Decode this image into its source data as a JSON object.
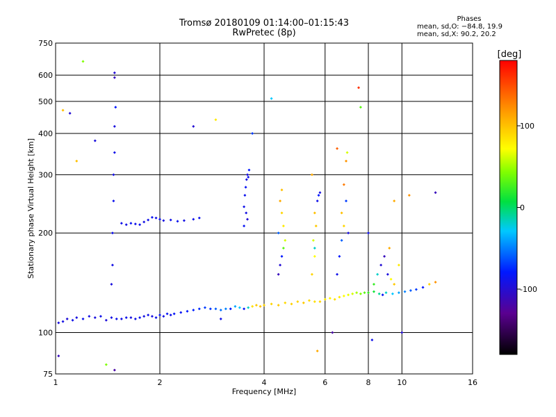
{
  "header": {
    "title_line1": "Tromsø 20180109 01:14:00–01:15:43",
    "title_line2": "RwPretec (8p)"
  },
  "phases": {
    "heading": "Phases",
    "line_o": "mean, sd,O: −84.8, 19.9",
    "line_x": "mean, sd,X:  90.2, 20.2"
  },
  "chart_data": {
    "type": "scatter",
    "title": "Tromsø 20180109 01:14:00–01:15:43",
    "subtitle": "RwPretec (8p)",
    "xlabel": "Frequency [MHz]",
    "ylabel": "Stationary phase Virtual Height [km]",
    "xscale": "log",
    "yscale": "log",
    "xlim": [
      1,
      16
    ],
    "ylim": [
      75,
      750
    ],
    "x_ticks": [
      1,
      2,
      4,
      6,
      8,
      10,
      16
    ],
    "y_ticks": [
      75,
      100,
      200,
      300,
      400,
      500,
      600,
      750
    ],
    "grid": true,
    "colorbar": {
      "label": "[deg]",
      "range": [
        -180,
        180
      ],
      "ticks": [
        100,
        0,
        -100
      ]
    },
    "series": [
      {
        "trace": "o-mode-lower",
        "points": [
          [
            1.02,
            107,
            -95
          ],
          [
            1.05,
            108,
            -92
          ],
          [
            1.08,
            110,
            -98
          ],
          [
            1.12,
            109,
            -90
          ],
          [
            1.15,
            111,
            -94
          ],
          [
            1.2,
            110,
            -88
          ],
          [
            1.25,
            112,
            -92
          ],
          [
            1.3,
            111,
            -95
          ],
          [
            1.35,
            112,
            -90
          ],
          [
            1.4,
            109,
            -97
          ],
          [
            1.45,
            111,
            -93
          ],
          [
            1.5,
            110,
            -89
          ],
          [
            1.55,
            110,
            -92
          ],
          [
            1.6,
            111,
            -88
          ],
          [
            1.65,
            111,
            -95
          ],
          [
            1.7,
            110,
            -91
          ],
          [
            1.75,
            111,
            -87
          ],
          [
            1.8,
            112,
            -93
          ],
          [
            1.85,
            113,
            -90
          ],
          [
            1.9,
            112,
            -94
          ],
          [
            1.95,
            111,
            -88
          ],
          [
            2.0,
            113,
            -86
          ],
          [
            2.05,
            112,
            -92
          ],
          [
            2.1,
            114,
            -85
          ],
          [
            2.15,
            113,
            -90
          ],
          [
            2.2,
            114,
            -83
          ],
          [
            2.3,
            115,
            -86
          ],
          [
            2.4,
            116,
            -80
          ],
          [
            2.5,
            117,
            -78
          ],
          [
            2.6,
            118,
            -75
          ],
          [
            2.7,
            119,
            -70
          ],
          [
            2.8,
            118,
            -72
          ],
          [
            2.9,
            118,
            -60
          ],
          [
            3.0,
            117,
            -55
          ],
          [
            3.1,
            118,
            -50
          ],
          [
            3.2,
            118,
            -80
          ],
          [
            3.3,
            120,
            -40
          ],
          [
            3.4,
            119,
            -30
          ],
          [
            3.5,
            118,
            -85
          ],
          [
            3.6,
            119,
            -20
          ]
        ]
      },
      {
        "trace": "x-mode-lower",
        "points": [
          [
            3.7,
            120,
            85
          ],
          [
            3.8,
            121,
            95
          ],
          [
            3.9,
            120,
            100
          ],
          [
            4.0,
            121,
            92
          ],
          [
            4.2,
            122,
            90
          ],
          [
            4.4,
            121,
            95
          ],
          [
            4.6,
            123,
            88
          ],
          [
            4.8,
            122,
            92
          ],
          [
            5.0,
            124,
            90
          ],
          [
            5.2,
            123,
            95
          ],
          [
            5.4,
            125,
            88
          ],
          [
            5.6,
            124,
            85
          ],
          [
            5.8,
            124,
            90
          ],
          [
            6.0,
            126,
            80
          ],
          [
            6.2,
            127,
            75
          ],
          [
            6.4,
            126,
            85
          ],
          [
            6.6,
            128,
            80
          ],
          [
            6.8,
            129,
            70
          ],
          [
            7.0,
            130,
            65
          ],
          [
            7.2,
            131,
            60
          ],
          [
            7.4,
            132,
            50
          ],
          [
            7.6,
            131,
            40
          ],
          [
            7.8,
            132,
            30
          ],
          [
            8.0,
            132,
            20
          ],
          [
            8.3,
            133,
            10
          ],
          [
            8.6,
            131,
            -10
          ],
          [
            9.0,
            132,
            -20
          ],
          [
            9.4,
            131,
            -30
          ],
          [
            9.8,
            132,
            -40
          ],
          [
            10.2,
            133,
            -50
          ],
          [
            10.6,
            134,
            -60
          ],
          [
            11.0,
            135,
            -70
          ],
          [
            11.5,
            137,
            -80
          ],
          [
            12.0,
            140,
            90
          ],
          [
            12.5,
            142,
            120
          ]
        ]
      },
      {
        "trace": "spread-1.5MHz",
        "points": [
          [
            1.45,
            140,
            -95
          ],
          [
            1.46,
            160,
            -92
          ],
          [
            1.46,
            200,
            -90
          ],
          [
            1.47,
            250,
            -88
          ],
          [
            1.47,
            300,
            -93
          ],
          [
            1.48,
            350,
            -90
          ],
          [
            1.48,
            420,
            -95
          ],
          [
            1.49,
            480,
            -80
          ],
          [
            1.48,
            590,
            -110
          ],
          [
            1.48,
            610,
            -100
          ]
        ]
      },
      {
        "trace": "patch-1.7-2.6MHz",
        "points": [
          [
            1.55,
            214,
            -90
          ],
          [
            1.6,
            212,
            -92
          ],
          [
            1.65,
            214,
            -85
          ],
          [
            1.7,
            213,
            -90
          ],
          [
            1.75,
            212,
            -88
          ],
          [
            1.8,
            216,
            -93
          ],
          [
            1.85,
            219,
            -90
          ],
          [
            1.9,
            223,
            -87
          ],
          [
            1.95,
            222,
            -91
          ],
          [
            2.0,
            220,
            -89
          ],
          [
            2.05,
            218,
            -93
          ],
          [
            2.15,
            219,
            -90
          ],
          [
            2.25,
            217,
            -87
          ],
          [
            2.35,
            218,
            -92
          ],
          [
            2.5,
            220,
            -90
          ],
          [
            2.6,
            222,
            -88
          ]
        ]
      },
      {
        "trace": "spread-3.5MHz",
        "points": [
          [
            3.5,
            240,
            -90
          ],
          [
            3.52,
            260,
            -88
          ],
          [
            3.54,
            275,
            -85
          ],
          [
            3.56,
            290,
            -92
          ],
          [
            3.58,
            300,
            -95
          ],
          [
            3.6,
            295,
            -90
          ],
          [
            3.55,
            230,
            -93
          ],
          [
            3.62,
            310,
            -80
          ],
          [
            3.58,
            220,
            -100
          ],
          [
            3.5,
            210,
            -85
          ]
        ]
      },
      {
        "trace": "spread-4.5MHz",
        "points": [
          [
            4.4,
            150,
            -110
          ],
          [
            4.45,
            160,
            -100
          ],
          [
            4.5,
            170,
            -80
          ],
          [
            4.55,
            180,
            30
          ],
          [
            4.6,
            190,
            60
          ],
          [
            4.5,
            230,
            90
          ],
          [
            4.45,
            250,
            110
          ],
          [
            4.5,
            270,
            100
          ],
          [
            4.55,
            210,
            80
          ],
          [
            4.4,
            200,
            -60
          ]
        ]
      },
      {
        "trace": "spread-5.5MHz",
        "points": [
          [
            5.5,
            150,
            90
          ],
          [
            5.6,
            170,
            70
          ],
          [
            5.55,
            190,
            60
          ],
          [
            5.65,
            210,
            95
          ],
          [
            5.6,
            230,
            100
          ],
          [
            5.7,
            250,
            -90
          ],
          [
            5.75,
            260,
            -80
          ],
          [
            5.8,
            265,
            -95
          ],
          [
            5.5,
            300,
            110
          ],
          [
            5.6,
            180,
            -20
          ]
        ]
      },
      {
        "trace": "spread-6.5MHz",
        "points": [
          [
            6.5,
            150,
            -90
          ],
          [
            6.6,
            170,
            -80
          ],
          [
            6.7,
            190,
            -60
          ],
          [
            6.8,
            210,
            90
          ],
          [
            6.7,
            230,
            100
          ],
          [
            6.9,
            250,
            -70
          ],
          [
            6.8,
            280,
            130
          ],
          [
            6.9,
            330,
            120
          ],
          [
            6.95,
            350,
            60
          ],
          [
            7.0,
            200,
            -95
          ]
        ]
      },
      {
        "trace": "spread-8-9MHz",
        "points": [
          [
            8.3,
            140,
            20
          ],
          [
            8.5,
            150,
            -20
          ],
          [
            8.7,
            160,
            -100
          ],
          [
            8.9,
            170,
            -110
          ],
          [
            9.1,
            150,
            -95
          ],
          [
            9.3,
            145,
            70
          ],
          [
            9.5,
            140,
            95
          ],
          [
            9.8,
            160,
            80
          ],
          [
            9.2,
            180,
            110
          ],
          [
            8.8,
            130,
            -85
          ]
        ]
      },
      {
        "trace": "scattered",
        "points": [
          [
            1.05,
            470,
            100
          ],
          [
            1.1,
            460,
            -100
          ],
          [
            1.2,
            660,
            40
          ],
          [
            1.15,
            330,
            100
          ],
          [
            1.3,
            380,
            -95
          ],
          [
            2.5,
            420,
            -100
          ],
          [
            2.9,
            440,
            80
          ],
          [
            3.0,
            110,
            -90
          ],
          [
            3.7,
            400,
            -70
          ],
          [
            4.2,
            510,
            -30
          ],
          [
            5.7,
            88,
            110
          ],
          [
            6.3,
            100,
            -120
          ],
          [
            6.5,
            360,
            140
          ],
          [
            7.5,
            550,
            160
          ],
          [
            7.6,
            480,
            30
          ],
          [
            8.2,
            95,
            -90
          ],
          [
            9.5,
            250,
            110
          ],
          [
            10.5,
            260,
            120
          ],
          [
            12.5,
            265,
            -110
          ],
          [
            1.02,
            85,
            -110
          ],
          [
            1.48,
            77,
            -120
          ],
          [
            1.4,
            80,
            40
          ],
          [
            8.0,
            200,
            -90
          ],
          [
            10.0,
            100,
            -100
          ]
        ]
      }
    ]
  }
}
